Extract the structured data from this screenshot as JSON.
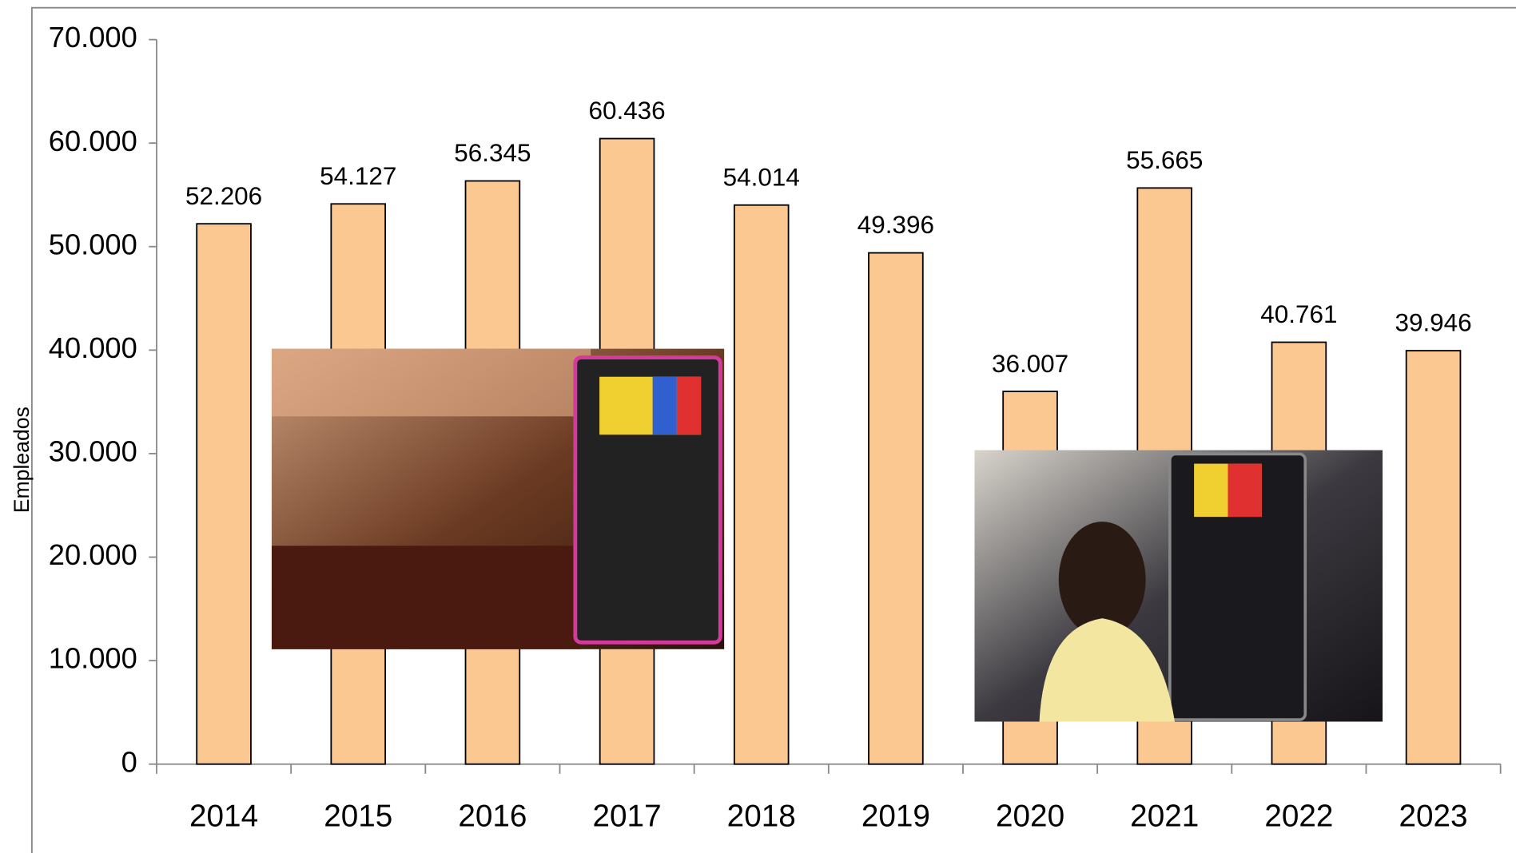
{
  "chart_data": {
    "type": "bar",
    "y_label": "Empleados",
    "categories": [
      "2014",
      "2015",
      "2016",
      "2017",
      "2018",
      "2019",
      "2020",
      "2021",
      "2022",
      "2023"
    ],
    "values": [
      52206,
      54127,
      56345,
      60436,
      54014,
      49396,
      36007,
      55665,
      40761,
      39946
    ],
    "value_labels": [
      "52.206",
      "54.127",
      "56.345",
      "60.436",
      "54.014",
      "49.396",
      "36.007",
      "55.665",
      "40.761",
      "39.946"
    ],
    "color": "#fcc892",
    "ylim": [
      0,
      70000
    ],
    "yticks": [
      0,
      {
        "value": 10000,
        "label": "10.000"
      },
      {
        "value": 20000,
        "label": "20.000"
      },
      {
        "value": 30000,
        "label": "30.000"
      },
      {
        "value": 40000,
        "label": "40.000"
      },
      {
        "value": 50000,
        "label": "50.000"
      },
      {
        "value": 60000,
        "label": "60.000"
      },
      {
        "value": 70000,
        "label": "70.000"
      }
    ],
    "grid": false
  }
}
